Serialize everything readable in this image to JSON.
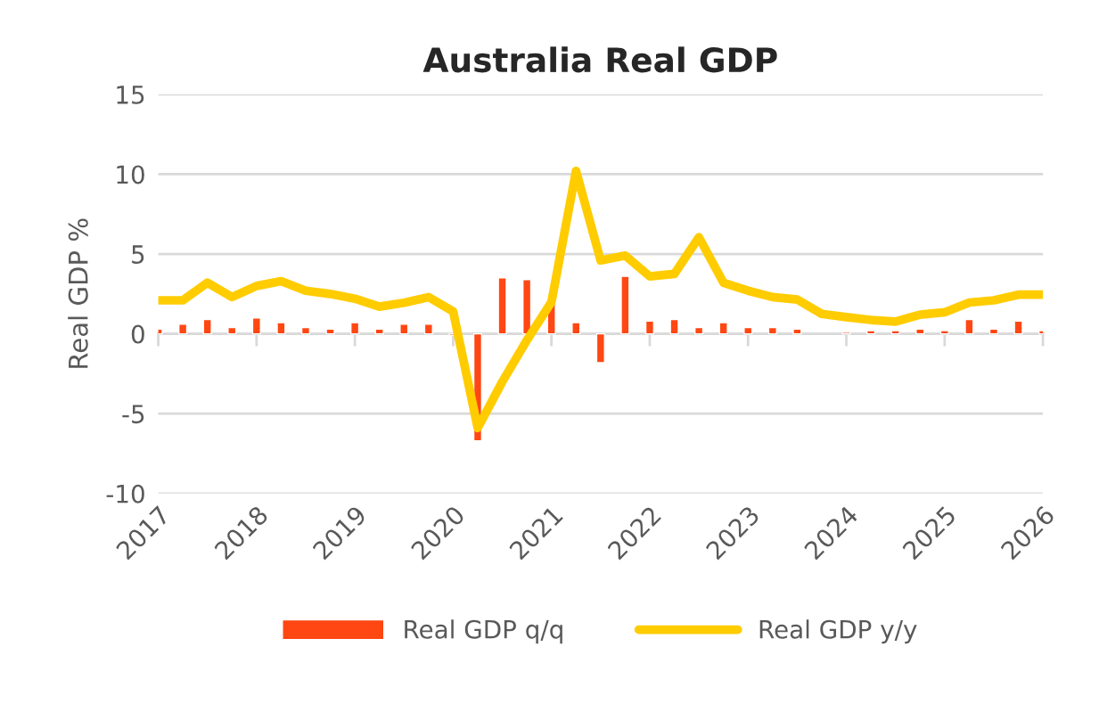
{
  "chart_data": {
    "type": "bar",
    "title": "Australia Real GDP",
    "ylabel": "Real GDP %",
    "x": [
      2017,
      2017.25,
      2017.5,
      2017.75,
      2018,
      2018.25,
      2018.5,
      2018.75,
      2019,
      2019.25,
      2019.5,
      2019.75,
      2020,
      2020.25,
      2020.5,
      2020.75,
      2021,
      2021.25,
      2021.5,
      2021.75,
      2022,
      2022.25,
      2022.5,
      2022.75,
      2023,
      2023.25,
      2023.5,
      2023.75,
      2024,
      2024.25,
      2024.5,
      2024.75,
      2025,
      2025.25,
      2025.5,
      2025.75,
      2026
    ],
    "series": [
      {
        "name": "Real GDP q/q",
        "color": "#ff4713",
        "values": [
          0.3,
          0.6,
          0.9,
          0.4,
          1.0,
          0.7,
          0.4,
          0.3,
          0.7,
          0.3,
          0.6,
          0.6,
          -0.1,
          -6.7,
          3.5,
          3.4,
          1.9,
          0.7,
          -1.8,
          3.6,
          0.8,
          0.9,
          0.4,
          0.7,
          0.4,
          0.4,
          0.3,
          null,
          0.1,
          0.2,
          0.2,
          0.3,
          0.2,
          0.9,
          0.3,
          0.8,
          0.2
        ]
      },
      {
        "name": "Real GDP y/y",
        "type": "line",
        "color": "#ffcc00",
        "values": [
          2.1,
          2.1,
          3.2,
          2.3,
          3.0,
          3.3,
          2.7,
          2.5,
          2.2,
          1.7,
          1.95,
          2.3,
          1.4,
          -5.9,
          -3.0,
          -0.4,
          2.0,
          10.2,
          4.6,
          4.9,
          3.6,
          3.75,
          6.05,
          3.2,
          2.7,
          2.3,
          2.15,
          1.25,
          1.05,
          0.87,
          0.77,
          1.2,
          1.35,
          1.96,
          2.1,
          2.45,
          2.45
        ]
      }
    ],
    "xlim": [
      2017,
      2026
    ],
    "xticks": [
      2017,
      2018,
      2019,
      2020,
      2021,
      2022,
      2023,
      2024,
      2025,
      2026
    ],
    "ylim": [
      -10,
      15
    ],
    "yticks": [
      -10,
      -5,
      0,
      5,
      10,
      15
    ],
    "grid": "y",
    "legend": "bottom"
  }
}
